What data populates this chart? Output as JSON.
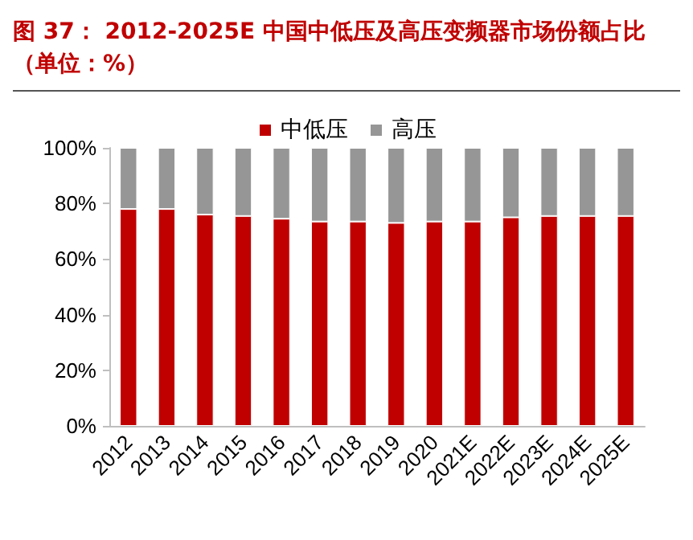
{
  "chart_data": {
    "type": "bar",
    "title": "图 37：  2012-2025E 中国中低压及高压变频器市场份额占比",
    "subtitle": "（单位：%）",
    "categories": [
      "2012",
      "2013",
      "2014",
      "2015",
      "2016",
      "2017",
      "2018",
      "2019",
      "2020",
      "2021E",
      "2022E",
      "2023E",
      "2024E",
      "2025E"
    ],
    "series": [
      {
        "name": "中低压",
        "color": "#c00000",
        "values": [
          78,
          78,
          76,
          75.5,
          74.5,
          73.5,
          73.5,
          73,
          73.5,
          73.5,
          75,
          75.5,
          75.5,
          75.5
        ]
      },
      {
        "name": "高压",
        "color": "#969696",
        "values": [
          22,
          22,
          24,
          24.5,
          25.5,
          26.5,
          26.5,
          27,
          26.5,
          26.5,
          25,
          24.5,
          24.5,
          24.5
        ]
      }
    ],
    "stacked": true,
    "ylim": [
      0,
      100
    ],
    "yticks": [
      {
        "value": 0,
        "label": "0%"
      },
      {
        "value": 20,
        "label": "20%"
      },
      {
        "value": 40,
        "label": "40%"
      },
      {
        "value": 60,
        "label": "60%"
      },
      {
        "value": 80,
        "label": "80%"
      },
      {
        "value": 100,
        "label": "100%"
      }
    ],
    "grid": false,
    "legend": "top"
  }
}
